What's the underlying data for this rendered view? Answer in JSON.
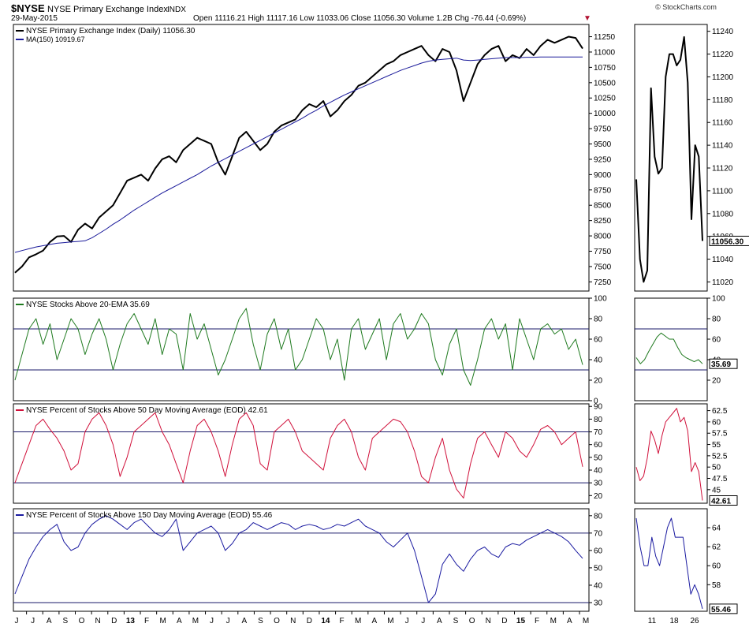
{
  "header": {
    "symbol": "$NYSE",
    "name": "NYSE Primary Exchange Index",
    "exchange": "INDX",
    "date": "29-May-2015",
    "ohlc": "Open 11116.21  High 11117.16  Low 11033.06  Close 11056.30  Volume 1.2B  Chg -76.44 (-0.69%)",
    "watermark": "© StockCharts.com",
    "down_marker": "▼"
  },
  "colors": {
    "price": "#000000",
    "ma": "#1a1a9a",
    "ema20": "#1f7a1f",
    "ma50": "#d0103a",
    "ma150": "#1a1aa0",
    "panel_border": "#000000",
    "grid_line": "#1a1a6a",
    "badge_bg": "#ffffff"
  },
  "x_axis": {
    "months": [
      "J",
      "J",
      "A",
      "S",
      "O",
      "N",
      "D",
      "13",
      "F",
      "M",
      "A",
      "M",
      "J",
      "J",
      "A",
      "S",
      "O",
      "N",
      "D",
      "14",
      "F",
      "M",
      "A",
      "M",
      "J",
      "J",
      "A",
      "S",
      "O",
      "N",
      "D",
      "15",
      "F",
      "M",
      "A",
      "M"
    ],
    "bold_months": [
      "13",
      "14",
      "15"
    ]
  },
  "zoom_x_axis": [
    "11",
    "18",
    "26"
  ],
  "chart_data": [
    {
      "type": "line",
      "title": "NYSE Primary Exchange Index (Daily) 11056.30",
      "series": [
        {
          "name": "NYSE Primary Exchange Index (Daily) 11056.30",
          "color": "#000000",
          "values": [
            7400,
            7500,
            7650,
            7700,
            7760,
            7900,
            7990,
            8000,
            7900,
            8100,
            8200,
            8120,
            8300,
            8400,
            8500,
            8700,
            8900,
            8950,
            9000,
            8900,
            9100,
            9250,
            9300,
            9200,
            9400,
            9500,
            9600,
            9550,
            9500,
            9200,
            9000,
            9300,
            9600,
            9700,
            9550,
            9400,
            9500,
            9700,
            9800,
            9850,
            9900,
            10050,
            10150,
            10100,
            10200,
            9950,
            10050,
            10200,
            10300,
            10450,
            10500,
            10600,
            10700,
            10800,
            10850,
            10950,
            11000,
            11050,
            11100,
            10950,
            10850,
            11050,
            11000,
            10700,
            10200,
            10500,
            10800,
            10950,
            11050,
            11100,
            10850,
            10950,
            10900,
            11050,
            10950,
            11100,
            11200,
            11150,
            11200,
            11250,
            11230,
            11056
          ]
        },
        {
          "name": "MA(150) 10919.67",
          "color": "#1a1a9a",
          "values": [
            7730,
            7760,
            7790,
            7820,
            7840,
            7860,
            7880,
            7890,
            7900,
            7910,
            7920,
            7970,
            8040,
            8110,
            8190,
            8260,
            8340,
            8420,
            8490,
            8560,
            8630,
            8700,
            8760,
            8820,
            8880,
            8940,
            9000,
            9070,
            9140,
            9200,
            9260,
            9320,
            9380,
            9440,
            9500,
            9560,
            9620,
            9680,
            9740,
            9800,
            9860,
            9920,
            9990,
            10050,
            10120,
            10180,
            10240,
            10300,
            10350,
            10400,
            10450,
            10500,
            10550,
            10600,
            10650,
            10700,
            10740,
            10780,
            10820,
            10850,
            10870,
            10880,
            10890,
            10900,
            10870,
            10860,
            10870,
            10880,
            10890,
            10900,
            10910,
            10910,
            10910,
            10915,
            10915,
            10918,
            10920,
            10920,
            10920,
            10920,
            10920,
            10920
          ]
        }
      ],
      "y_ticks": [
        7250,
        7500,
        7750,
        8000,
        8250,
        8500,
        8750,
        9000,
        9250,
        9500,
        9750,
        10000,
        10250,
        10500,
        10750,
        11000,
        11250
      ],
      "ylim": [
        7100,
        11450
      ],
      "last_label": "11056.30",
      "zoom": {
        "values": [
          11110,
          11040,
          11020,
          11030,
          11190,
          11130,
          11115,
          11120,
          11200,
          11220,
          11220,
          11210,
          11215,
          11235,
          11195,
          11075,
          11140,
          11130,
          11056
        ],
        "y_ticks": [
          11020,
          11040,
          11060,
          11080,
          11100,
          11120,
          11140,
          11160,
          11180,
          11200,
          11220,
          11240
        ],
        "ylim": [
          11012,
          11246
        ]
      }
    },
    {
      "type": "line",
      "title": "NYSE Stocks Above 20-EMA 35.69",
      "series": [
        {
          "name": "NYSE Stocks Above 20-EMA 35.69",
          "color": "#1f7a1f",
          "values": [
            20,
            45,
            70,
            80,
            55,
            75,
            40,
            60,
            80,
            70,
            45,
            65,
            80,
            60,
            30,
            55,
            75,
            85,
            70,
            55,
            80,
            45,
            70,
            65,
            30,
            85,
            60,
            75,
            50,
            25,
            40,
            60,
            80,
            90,
            55,
            30,
            65,
            80,
            50,
            70,
            30,
            40,
            60,
            80,
            70,
            40,
            60,
            20,
            70,
            80,
            50,
            65,
            80,
            40,
            75,
            85,
            60,
            70,
            85,
            75,
            40,
            25,
            55,
            70,
            30,
            15,
            40,
            70,
            80,
            60,
            75,
            30,
            80,
            60,
            40,
            70,
            75,
            65,
            70,
            50,
            60,
            35
          ]
        }
      ],
      "y_ticks": [
        0,
        20,
        40,
        60,
        80,
        100
      ],
      "ylim": [
        0,
        100
      ],
      "ref_lines": [
        70,
        30
      ],
      "last_label": "35.69",
      "zoom": {
        "values": [
          42,
          36,
          40,
          48,
          55,
          62,
          66,
          63,
          60,
          60,
          52,
          45,
          42,
          40,
          38,
          40,
          36
        ],
        "y_ticks": [
          20,
          40,
          60,
          80,
          100
        ],
        "ylim": [
          0,
          100
        ]
      }
    },
    {
      "type": "line",
      "title": "NYSE Percent of Stocks Above 50 Day Moving Average (EOD) 42.61",
      "series": [
        {
          "name": "NYSE Percent of Stocks Above 50 Day Moving Average (EOD) 42.61",
          "color": "#d0103a",
          "values": [
            30,
            45,
            60,
            75,
            80,
            72,
            65,
            55,
            40,
            45,
            70,
            80,
            85,
            75,
            60,
            35,
            50,
            70,
            75,
            80,
            85,
            70,
            60,
            45,
            30,
            55,
            75,
            80,
            70,
            55,
            35,
            60,
            80,
            85,
            75,
            45,
            40,
            70,
            75,
            80,
            70,
            55,
            50,
            45,
            40,
            65,
            75,
            80,
            70,
            50,
            40,
            65,
            70,
            75,
            80,
            78,
            70,
            55,
            35,
            30,
            50,
            65,
            40,
            25,
            18,
            45,
            65,
            70,
            60,
            50,
            70,
            65,
            55,
            50,
            60,
            72,
            75,
            70,
            60,
            65,
            70,
            42.61
          ]
        }
      ],
      "y_ticks": [
        20,
        30,
        40,
        50,
        60,
        70,
        80,
        90
      ],
      "ylim": [
        14,
        92
      ],
      "ref_lines": [
        70,
        30
      ],
      "last_label": "42.61",
      "zoom": {
        "values": [
          50,
          47,
          48,
          52,
          58,
          56,
          53,
          57,
          60,
          61,
          62,
          63,
          60,
          61,
          58,
          49,
          51,
          49,
          42.61
        ],
        "y_ticks": [
          45,
          47.5,
          50,
          52.5,
          55,
          57.5,
          60,
          62.5
        ],
        "ylim": [
          42,
          64
        ]
      }
    },
    {
      "type": "line",
      "title": "NYSE Percent of Stocks Above 150 Day Moving Average (EOD) 55.46",
      "series": [
        {
          "name": "NYSE Percent of Stocks Above 150 Day Moving Average (EOD) 55.46",
          "color": "#1a1aa0",
          "values": [
            35,
            45,
            55,
            62,
            68,
            72,
            75,
            65,
            60,
            62,
            70,
            75,
            78,
            80,
            78,
            75,
            72,
            76,
            78,
            74,
            70,
            68,
            72,
            78,
            60,
            65,
            70,
            72,
            74,
            70,
            60,
            64,
            70,
            72,
            76,
            74,
            72,
            74,
            76,
            75,
            72,
            74,
            75,
            74,
            72,
            73,
            75,
            74,
            76,
            78,
            74,
            72,
            70,
            65,
            62,
            66,
            70,
            60,
            45,
            30,
            35,
            52,
            58,
            52,
            48,
            55,
            60,
            62,
            58,
            56,
            62,
            64,
            63,
            66,
            68,
            70,
            72,
            70,
            68,
            65,
            60,
            55.46
          ]
        }
      ],
      "y_ticks": [
        30,
        40,
        50,
        60,
        70,
        80
      ],
      "ylim": [
        25,
        84
      ],
      "ref_lines": [
        70,
        30
      ],
      "last_label": "55.46",
      "zoom": {
        "values": [
          65,
          62,
          60,
          60,
          63,
          61,
          60,
          62,
          64,
          65,
          63,
          63,
          63,
          60,
          57,
          58,
          57,
          55.46
        ],
        "y_ticks": [
          58,
          60,
          62,
          64
        ],
        "ylim": [
          55.2,
          66
        ]
      }
    }
  ]
}
